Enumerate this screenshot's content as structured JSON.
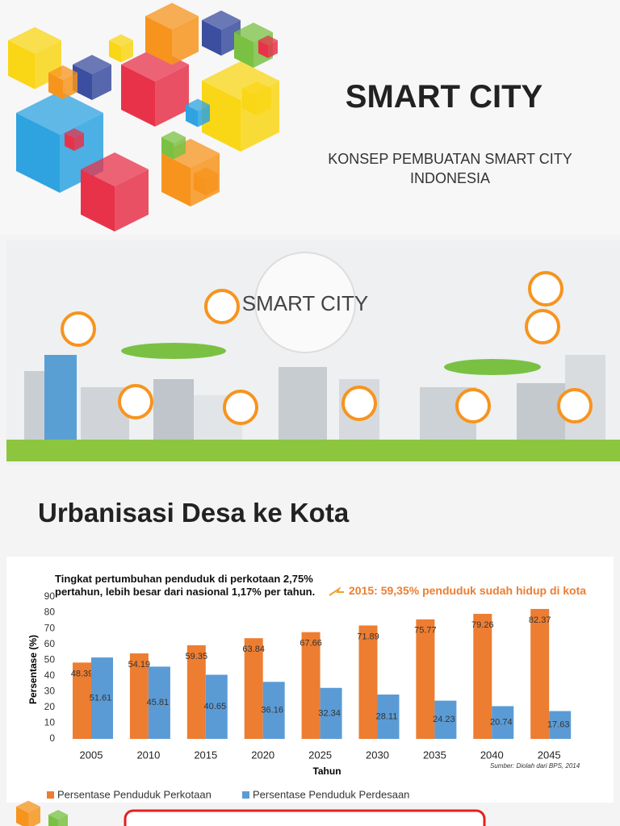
{
  "header": {
    "title": "SMART CITY",
    "subtitle": "KONSEP PEMBUATAN SMART CITY INDONESIA"
  },
  "illustration": {
    "label": "SMART CITY"
  },
  "section_title": "Urbanisasi Desa ke Kota",
  "chart_data": {
    "type": "bar",
    "annotation": "Tingkat pertumbuhan penduduk  di perkotaan 2,75% pertahun, lebih besar dari nasional 1,17% per tahun.",
    "highlight": "2015:  59,35% penduduk sudah hidup di kota",
    "source": "Sumber:  Diolah dari BPS, 2014",
    "x_label": "Tahun",
    "y_label": "Persentase (%)",
    "categories": [
      "2005",
      "2010",
      "2015",
      "2020",
      "2025",
      "2030",
      "2035",
      "2040",
      "2045"
    ],
    "series": [
      {
        "name": "Persentase Penduduk Perkotaan",
        "color": "#ed7d31",
        "values": [
          48.39,
          54.19,
          59.35,
          63.84,
          67.66,
          71.89,
          75.77,
          79.26,
          82.37
        ]
      },
      {
        "name": "Persentase Penduduk Perdesaan",
        "color": "#5b9bd5",
        "values": [
          51.61,
          45.81,
          40.65,
          36.16,
          32.34,
          28.11,
          24.23,
          20.74,
          17.63
        ]
      }
    ],
    "ylim": [
      0,
      90
    ],
    "yticks": [
      0,
      10,
      20,
      30,
      40,
      50,
      60,
      70,
      80,
      90
    ],
    "grid": false
  }
}
